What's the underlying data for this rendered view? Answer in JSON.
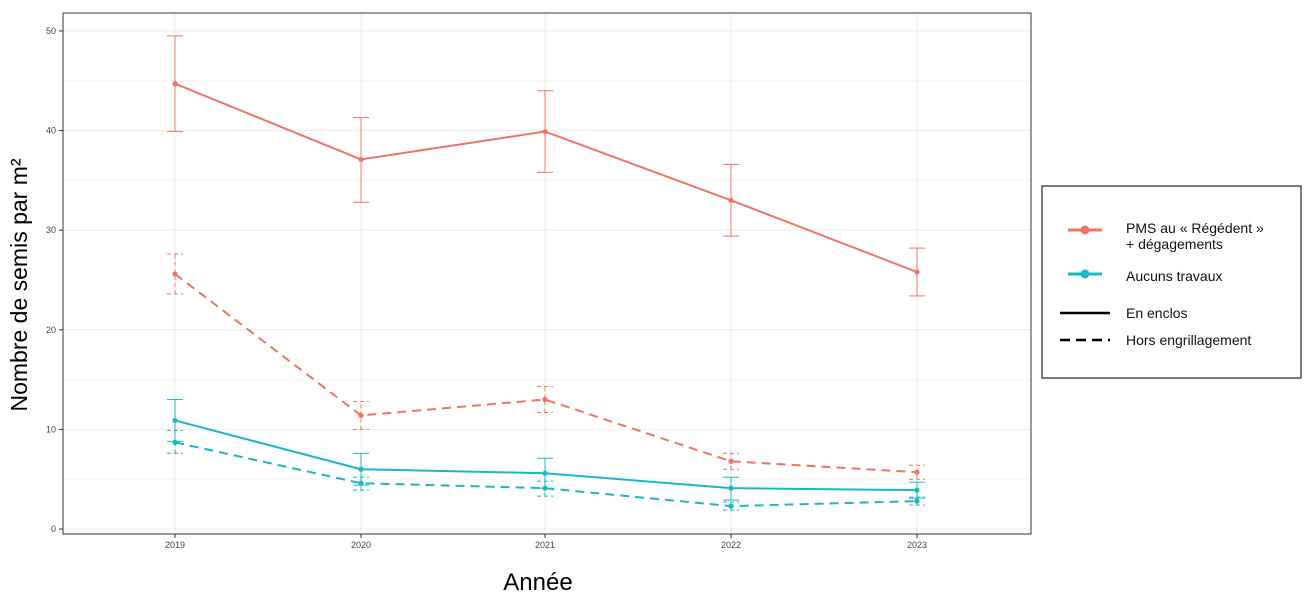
{
  "chart_data": {
    "type": "line",
    "xlabel": "Année",
    "ylabel": "Nombre de semis par m²",
    "x": [
      "2019",
      "2020",
      "2021",
      "2022",
      "2023"
    ],
    "yticks": [
      0,
      10,
      20,
      30,
      40,
      50
    ],
    "ylim": [
      -0.5,
      51.8
    ],
    "grid": true,
    "legend_position": "right",
    "series": [
      {
        "group": "PMS au « Régédent » + dégagements",
        "linetype": "En enclos",
        "color": "#f07464",
        "values": [
          44.7,
          37.1,
          39.9,
          33.0,
          25.8
        ],
        "err_low": [
          39.9,
          32.8,
          35.8,
          29.4,
          23.4
        ],
        "err_high": [
          49.5,
          41.3,
          44.0,
          36.6,
          28.2
        ]
      },
      {
        "group": "PMS au « Régédent » + dégagements",
        "linetype": "Hors engrillagement",
        "color": "#f07464",
        "values": [
          25.6,
          11.4,
          13.0,
          6.8,
          5.7
        ],
        "err_low": [
          23.6,
          10.0,
          11.7,
          6.0,
          5.0
        ],
        "err_high": [
          27.6,
          12.8,
          14.3,
          7.6,
          6.4
        ]
      },
      {
        "group": "Aucuns travaux",
        "linetype": "En enclos",
        "color": "#1ab8c4",
        "values": [
          10.9,
          6.0,
          5.6,
          4.1,
          3.9
        ],
        "err_low": [
          8.8,
          4.4,
          4.1,
          2.9,
          3.1
        ],
        "err_high": [
          13.0,
          7.6,
          7.1,
          5.2,
          4.7
        ]
      },
      {
        "group": "Aucuns travaux",
        "linetype": "Hors engrillagement",
        "color": "#1ab8c4",
        "values": [
          8.7,
          4.6,
          4.1,
          2.3,
          2.8
        ],
        "err_low": [
          7.6,
          3.9,
          3.3,
          1.9,
          2.4
        ],
        "err_high": [
          9.9,
          5.2,
          4.8,
          2.7,
          3.2
        ]
      }
    ]
  },
  "legend": {
    "items": [
      {
        "label_line1": "PMS au « Régédent »",
        "label_line2": "+ dégagements",
        "color": "#f07464",
        "kind": "color"
      },
      {
        "label_line1": "Aucuns travaux",
        "label_line2": "",
        "color": "#1ab8c4",
        "kind": "color"
      },
      {
        "label_line1": "En enclos",
        "label_line2": "",
        "color": "#000000",
        "kind": "solid"
      },
      {
        "label_line1": "Hors engrillagement",
        "label_line2": "",
        "color": "#000000",
        "kind": "dashed"
      }
    ]
  }
}
